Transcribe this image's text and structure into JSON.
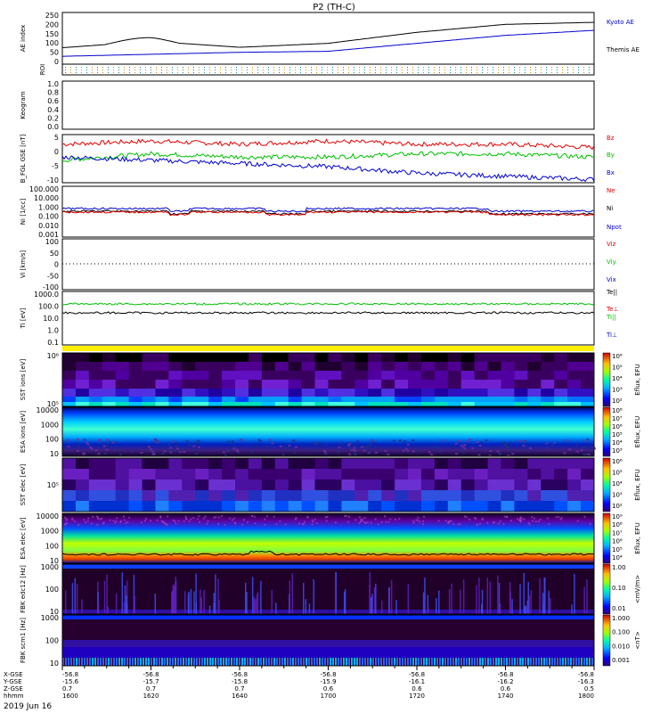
{
  "title": "P2 (TH-C)",
  "date_label": "2019 Jun 16",
  "colors": {
    "red": "#e00000",
    "green": "#00c000",
    "blue": "#0000d0",
    "black": "#000000",
    "yellow": "#ffee00"
  },
  "panels": {
    "ae": {
      "ylabel": "AE index",
      "ticks": [
        "250",
        "200",
        "150",
        "100",
        "50",
        "0"
      ],
      "legend": [
        "Kyoto AE",
        "Themis AE"
      ]
    },
    "roi": {
      "ylabel": "ROI"
    },
    "keogram": {
      "ylabel": "Keogram",
      "ticks": [
        "1.0",
        "0.8",
        "0.6",
        "0.4",
        "0.2",
        "0.0"
      ]
    },
    "bfgl": {
      "ylabel": "B_FGL GSE [nT]",
      "ticks": [
        "5",
        "0",
        "-5",
        "-10"
      ],
      "legend": [
        "Bz",
        "By",
        "Bx"
      ]
    },
    "density": {
      "ylabel": "Ni [1/cc]",
      "ticks": [
        "100.000",
        "10.000",
        "1.000",
        "0.100",
        "0.010",
        "0.001"
      ],
      "legend": [
        "Ne",
        "Ni",
        "Npot"
      ]
    },
    "velocity": {
      "ylabel": "Vi [km/s]",
      "ticks": [
        "100",
        "50",
        "0",
        "-50",
        "-100"
      ],
      "legend": [
        "Viz",
        "Viy",
        "Vix"
      ]
    },
    "temperature": {
      "ylabel": "Ti [eV]",
      "ticks": [
        "1000.0",
        "100.0",
        "10.0",
        "1.0",
        "0.1"
      ],
      "legend": [
        "Te||",
        "Te⊥",
        "Ti||",
        "Ti⊥"
      ]
    },
    "sst_ion": {
      "ylabel": "SST ions [eV]",
      "ticks": [
        "10⁶",
        "10⁵"
      ]
    },
    "esa_ion": {
      "ylabel": "ESA ions [eV]",
      "ticks": [
        "10000",
        "1000",
        "100",
        "10"
      ]
    },
    "sst_elec": {
      "ylabel": "SST elec [eV]",
      "ticks": [
        "10⁵"
      ]
    },
    "esa_elec": {
      "ylabel": "ESA elec [eV]",
      "ticks": [
        "10000",
        "1000",
        "100",
        "10"
      ]
    },
    "fbk_e": {
      "ylabel": "FBK edc12 [Hz]",
      "ticks": [
        "1000",
        "100",
        "10"
      ]
    },
    "fbk_b": {
      "ylabel": "FBK scm1 [Hz]",
      "ticks": [
        "1000",
        "100",
        "10"
      ]
    }
  },
  "colorbars": [
    {
      "label": "Eflux, EFU",
      "ticks": [
        "10⁶",
        "10⁵",
        "10⁴",
        "10³",
        "10²"
      ]
    },
    {
      "label": "Eflux, EFU",
      "ticks": [
        "10⁸",
        "10⁷",
        "10⁶",
        "10⁵",
        "10⁴",
        "10³"
      ]
    },
    {
      "label": "Eflux, EFU",
      "ticks": [
        "10⁶",
        "10⁵",
        "10⁴",
        "10³",
        "10²"
      ]
    },
    {
      "label": "Eflux, EFU",
      "ticks": [
        "10⁹",
        "10⁸",
        "10⁷",
        "10⁶",
        "10⁵",
        "10⁴"
      ]
    },
    {
      "label": "<mV/m>",
      "ticks": [
        "1.00",
        "0.10",
        "0.01"
      ]
    },
    {
      "label": "<nT>",
      "ticks": [
        "1.000",
        "0.100",
        "0.010",
        "0.001"
      ]
    }
  ],
  "xaxis": {
    "row_labels": [
      "X-GSE",
      "Y-GSE",
      "Z-GSE",
      "hhmm"
    ],
    "columns": [
      {
        "x": "-56.8",
        "y": "-15.6",
        "z": "0.7",
        "t": "1600"
      },
      {
        "x": "-56.8",
        "y": "-15.7",
        "z": "0.7",
        "t": "1620"
      },
      {
        "x": "-56.8",
        "y": "-15.8",
        "z": "0.7",
        "t": "1640"
      },
      {
        "x": "-56.8",
        "y": "-15.9",
        "z": "0.6",
        "t": "1700"
      },
      {
        "x": "-56.8",
        "y": "-16.1",
        "z": "0.6",
        "t": "1720"
      },
      {
        "x": "-56.8",
        "y": "-16.2",
        "z": "0.6",
        "t": "1740"
      },
      {
        "x": "-56.8",
        "y": "-16.3",
        "z": "0.5",
        "t": "1800"
      }
    ]
  },
  "chart_data": {
    "type": "line",
    "x_hhmm": [
      "1600",
      "1620",
      "1640",
      "1700",
      "1720",
      "1740",
      "1800"
    ],
    "ae": {
      "ylim": [
        0,
        250
      ],
      "series": [
        {
          "name": "Kyoto AE",
          "values": [
            35,
            45,
            55,
            60,
            100,
            140,
            165
          ]
        },
        {
          "name": "Themis AE",
          "values": [
            78,
            110,
            80,
            100,
            155,
            195,
            205
          ]
        }
      ]
    },
    "bfgl": {
      "ylim": [
        -10,
        5
      ],
      "series": [
        {
          "name": "Bz",
          "values": [
            2,
            3,
            2,
            3,
            2,
            2,
            1
          ]
        },
        {
          "name": "By",
          "values": [
            -3,
            -1,
            -2,
            -2,
            -1,
            -1,
            -2
          ]
        },
        {
          "name": "Bx",
          "values": [
            -2,
            -3,
            -4,
            -5,
            -7,
            -8,
            -9
          ]
        }
      ]
    }
  }
}
